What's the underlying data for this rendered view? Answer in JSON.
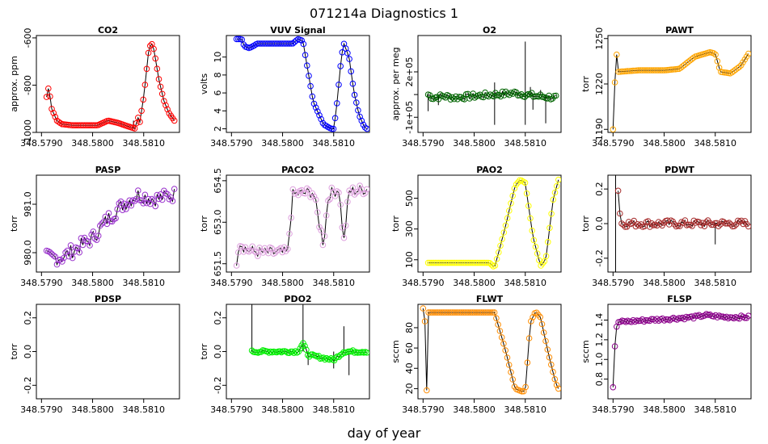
{
  "figure": {
    "title": "071214a   Diagnostics 1",
    "xlabel": "day of year"
  },
  "chart_data": [
    {
      "type": "scatter",
      "title": "CO2",
      "ylabel": "approx. ppm",
      "color": "#ff0000",
      "xlim": [
        348.5789,
        348.5817
      ],
      "ylim": [
        -1000,
        -590
      ],
      "yticks": [
        -1000,
        -800,
        -600
      ],
      "ytick_labels": [
        "-1000",
        "-800",
        "-600"
      ],
      "xticks": [
        348.579,
        348.58,
        348.581
      ],
      "xtick_labels": [
        "348.5790",
        "348.5800",
        "348.5810"
      ],
      "anchors": [
        [
          348.5791,
          -850
        ],
        [
          348.57912,
          -810
        ],
        [
          348.57915,
          -820
        ],
        [
          348.5792,
          -900
        ],
        [
          348.5793,
          -950
        ],
        [
          348.5794,
          -965
        ],
        [
          348.5796,
          -970
        ],
        [
          348.5801,
          -970
        ],
        [
          348.5802,
          -960
        ],
        [
          348.5803,
          -950
        ],
        [
          348.5805,
          -960
        ],
        [
          348.5807,
          -975
        ],
        [
          348.58085,
          -985
        ],
        [
          348.58088,
          -880
        ],
        [
          348.5809,
          -990
        ],
        [
          348.581,
          -850
        ],
        [
          348.5811,
          -650
        ],
        [
          348.58115,
          -620
        ],
        [
          348.5812,
          -650
        ],
        [
          348.5813,
          -780
        ],
        [
          348.5814,
          -870
        ],
        [
          348.5815,
          -920
        ],
        [
          348.5816,
          -950
        ]
      ],
      "spikes": [
        [
          348.5808,
          -985,
          -950
        ]
      ]
    },
    {
      "type": "scatter",
      "title": "VUV Signal",
      "ylabel": "volts",
      "color": "#0000ff",
      "xlim": [
        348.5789,
        348.5817
      ],
      "ylim": [
        1.6,
        12.4
      ],
      "yticks": [
        2,
        4,
        6,
        8,
        10
      ],
      "ytick_labels": [
        "2",
        "4",
        "6",
        "8",
        "10"
      ],
      "xticks": [
        348.579,
        348.58,
        348.581
      ],
      "xtick_labels": [
        "348.5790",
        "348.5800",
        "348.5810"
      ],
      "anchors": [
        [
          348.5791,
          12.0
        ],
        [
          348.5792,
          12.0
        ],
        [
          348.57925,
          11.2
        ],
        [
          348.57935,
          11.0
        ],
        [
          348.57945,
          11.3
        ],
        [
          348.5795,
          11.5
        ],
        [
          348.5802,
          11.5
        ],
        [
          348.5803,
          12.0
        ],
        [
          348.5804,
          11.8
        ],
        [
          348.58045,
          10.0
        ],
        [
          348.5806,
          5.0
        ],
        [
          348.5808,
          2.5
        ],
        [
          348.58095,
          2.0
        ],
        [
          348.581,
          2.0
        ],
        [
          348.58105,
          4.0
        ],
        [
          348.58115,
          10.0
        ],
        [
          348.5812,
          11.5
        ],
        [
          348.5813,
          10.0
        ],
        [
          348.5814,
          6.0
        ],
        [
          348.5815,
          3.5
        ],
        [
          348.5816,
          2.2
        ],
        [
          348.58165,
          2.0
        ]
      ],
      "spikes": []
    },
    {
      "type": "scatter",
      "title": "O2",
      "ylabel": "approx. per meg",
      "color": "#006400",
      "xlim": [
        348.5789,
        348.5817
      ],
      "ylim": [
        -200000.0,
        440000.0
      ],
      "yticks": [
        -100000.0,
        50000.0,
        200000.0
      ],
      "ytick_labels": [
        "-1e+05",
        "",
        "2e+05"
      ],
      "xticks": [
        348.579,
        348.58,
        348.581
      ],
      "xtick_labels": [
        "348.5790",
        "348.5800",
        "348.5810"
      ],
      "anchors": [
        [
          348.5791,
          50000.0
        ],
        [
          348.5792,
          30000.0
        ],
        [
          348.5794,
          40000.0
        ],
        [
          348.5796,
          30000.0
        ],
        [
          348.58,
          40000.0
        ],
        [
          348.5804,
          50000.0
        ],
        [
          348.5808,
          60000.0
        ],
        [
          348.5812,
          40000.0
        ],
        [
          348.5816,
          30000.0
        ]
      ],
      "noise": 18000,
      "spikes": [
        [
          348.5791,
          50000,
          -60000
        ],
        [
          348.5793,
          50000,
          -20000
        ],
        [
          348.5804,
          50000,
          130000
        ],
        [
          348.5804,
          50000,
          -150000
        ],
        [
          348.581,
          50000,
          400000
        ],
        [
          348.581,
          50000,
          -150000
        ],
        [
          348.5811,
          50000,
          100000
        ],
        [
          348.58115,
          50000,
          -50000
        ],
        [
          348.5813,
          50000,
          80000
        ],
        [
          348.5814,
          50000,
          -140000
        ]
      ]
    },
    {
      "type": "scatter",
      "title": "PAWT",
      "ylabel": "torr",
      "color": "#ffa500",
      "xlim": [
        348.5789,
        348.5817
      ],
      "ylim": [
        1188,
        1252
      ],
      "yticks": [
        1190,
        1220,
        1250
      ],
      "ytick_labels": [
        "1190",
        "1220",
        "1250"
      ],
      "xticks": [
        348.579,
        348.58,
        348.581
      ],
      "xtick_labels": [
        "348.5790",
        "348.5800",
        "348.5810"
      ],
      "anchors": [
        [
          348.579,
          1190
        ],
        [
          348.57903,
          1210
        ],
        [
          348.57905,
          1248
        ],
        [
          348.5791,
          1228
        ],
        [
          348.5795,
          1229
        ],
        [
          348.58,
          1229
        ],
        [
          348.5803,
          1230
        ],
        [
          348.5806,
          1238
        ],
        [
          348.5809,
          1241
        ],
        [
          348.581,
          1240
        ],
        [
          348.5811,
          1228
        ],
        [
          348.5813,
          1227
        ],
        [
          348.5815,
          1232
        ],
        [
          348.58165,
          1240
        ]
      ],
      "spikes": []
    },
    {
      "type": "scatter",
      "title": "PASP",
      "ylabel": "torr",
      "color": "#9932cc",
      "xlim": [
        348.5789,
        348.5817
      ],
      "ylim": [
        979.6,
        981.6
      ],
      "yticks": [
        980.0,
        981.0
      ],
      "ytick_labels": [
        "980.0",
        "981.0"
      ],
      "xticks": [
        348.579,
        348.58,
        348.581
      ],
      "xtick_labels": [
        "348.5790",
        "348.5800",
        "348.5810"
      ],
      "anchors": [
        [
          348.5791,
          979.9
        ],
        [
          348.5794,
          979.9
        ],
        [
          348.5797,
          980.1
        ],
        [
          348.58,
          980.3
        ],
        [
          348.5803,
          980.7
        ],
        [
          348.5806,
          981.0
        ],
        [
          348.5809,
          981.2
        ],
        [
          348.5812,
          981.1
        ],
        [
          348.5816,
          981.2
        ]
      ],
      "noise": 0.15,
      "spikes": []
    },
    {
      "type": "scatter",
      "title": "PACO2",
      "ylabel": "torr",
      "color": "#dda0dd",
      "xlim": [
        348.5789,
        348.5817
      ],
      "ylim": [
        651.2,
        654.7
      ],
      "yticks": [
        651.5,
        653.0,
        654.5
      ],
      "ytick_labels": [
        "651.5",
        "653.0",
        "654.5"
      ],
      "xticks": [
        348.579,
        348.58,
        348.581
      ],
      "xtick_labels": [
        "348.5790",
        "348.5800",
        "348.5810"
      ],
      "anchors": [
        [
          348.5791,
          651.6
        ],
        [
          348.57915,
          652.3
        ],
        [
          348.5793,
          652.0
        ],
        [
          348.5796,
          651.9
        ],
        [
          348.5801,
          651.9
        ],
        [
          348.5802,
          654.0
        ],
        [
          348.5806,
          654.1
        ],
        [
          348.5808,
          652.2
        ],
        [
          348.5809,
          654.0
        ],
        [
          348.5811,
          654.2
        ],
        [
          348.5812,
          652.3
        ],
        [
          348.5813,
          654.1
        ],
        [
          348.58165,
          654.2
        ]
      ],
      "noise": 0.2,
      "spikes": []
    },
    {
      "type": "scatter",
      "title": "PAO2",
      "ylabel": "torr",
      "color": "#ffff00",
      "xlim": [
        348.5789,
        348.5817
      ],
      "ylim": [
        20,
        650
      ],
      "yticks": [
        100,
        300,
        500
      ],
      "ytick_labels": [
        "100",
        "300",
        "500"
      ],
      "xticks": [
        348.579,
        348.58,
        348.581
      ],
      "xtick_labels": [
        "348.5790",
        "348.5800",
        "348.5810"
      ],
      "anchors": [
        [
          348.5791,
          80
        ],
        [
          348.5803,
          80
        ],
        [
          348.5804,
          50
        ],
        [
          348.5806,
          300
        ],
        [
          348.5808,
          580
        ],
        [
          348.5809,
          620
        ],
        [
          348.581,
          600
        ],
        [
          348.58115,
          250
        ],
        [
          348.5813,
          60
        ],
        [
          348.5814,
          100
        ],
        [
          348.58155,
          500
        ],
        [
          348.58165,
          620
        ]
      ],
      "spikes": []
    },
    {
      "type": "scatter",
      "title": "PDWT",
      "ylabel": "torr",
      "color": "#a52a2a",
      "xlim": [
        348.5789,
        348.5817
      ],
      "ylim": [
        -0.28,
        0.28
      ],
      "yticks": [
        -0.2,
        0.0,
        0.2
      ],
      "ytick_labels": [
        "-0.2",
        "0.0",
        "0.2"
      ],
      "xticks": [
        348.579,
        348.58,
        348.581
      ],
      "xtick_labels": [
        "348.5790",
        "348.5800",
        "348.5810"
      ],
      "anchors": [
        [
          348.5791,
          0.2
        ],
        [
          348.57915,
          0.0
        ],
        [
          348.58165,
          0.0
        ]
      ],
      "noise": 0.02,
      "spikes": [
        [
          348.57905,
          0,
          0.3
        ],
        [
          348.57905,
          0,
          -0.3
        ],
        [
          348.581,
          0,
          -0.12
        ]
      ]
    },
    {
      "type": "scatter",
      "title": "PDSP",
      "ylabel": "torr",
      "color": "#000000",
      "xlim": [
        348.5789,
        348.5817
      ],
      "ylim": [
        -0.28,
        0.28
      ],
      "yticks": [
        -0.2,
        0.0,
        0.2
      ],
      "ytick_labels": [
        "-0.2",
        "0.0",
        "0.2"
      ],
      "xticks": [
        348.579,
        348.58,
        348.581
      ],
      "xtick_labels": [
        "348.5790",
        "348.5800",
        "348.5810"
      ],
      "anchors": [],
      "spikes": []
    },
    {
      "type": "scatter",
      "title": "PDO2",
      "ylabel": "torr",
      "color": "#00ee00",
      "xlim": [
        348.5789,
        348.5817
      ],
      "ylim": [
        -0.28,
        0.28
      ],
      "yticks": [
        -0.2,
        0.0,
        0.2
      ],
      "ytick_labels": [
        "-0.2",
        "0.0",
        "0.2"
      ],
      "xticks": [
        348.579,
        348.58,
        348.581
      ],
      "xtick_labels": [
        "348.5790",
        "348.5800",
        "348.5810"
      ],
      "anchors": [
        [
          348.5794,
          0.0
        ],
        [
          348.5803,
          0.0
        ],
        [
          348.5804,
          0.05
        ],
        [
          348.5805,
          -0.02
        ],
        [
          348.581,
          -0.05
        ],
        [
          348.5812,
          0.0
        ],
        [
          348.58165,
          0.0
        ]
      ],
      "noise": 0.008,
      "spikes": [
        [
          348.5794,
          0,
          0.3
        ],
        [
          348.5804,
          0,
          0.3
        ],
        [
          348.5805,
          0,
          -0.08
        ],
        [
          348.581,
          0,
          -0.1
        ],
        [
          348.5812,
          0,
          0.15
        ],
        [
          348.5813,
          0,
          -0.14
        ]
      ]
    },
    {
      "type": "scatter",
      "title": "FLWT",
      "ylabel": "sccm",
      "color": "#ff8c00",
      "xlim": [
        348.5789,
        348.5817
      ],
      "ylim": [
        10,
        103
      ],
      "yticks": [
        20,
        40,
        60,
        80
      ],
      "ytick_labels": [
        "20",
        "40",
        "60",
        "80"
      ],
      "xticks": [
        348.579,
        348.58,
        348.581
      ],
      "xtick_labels": [
        "348.5790",
        "348.5800",
        "348.5810"
      ],
      "anchors": [
        [
          348.579,
          99
        ],
        [
          348.57903,
          97
        ],
        [
          348.57905,
          60
        ],
        [
          348.57907,
          14
        ],
        [
          348.5791,
          95
        ],
        [
          348.5804,
          95
        ],
        [
          348.5806,
          60
        ],
        [
          348.5808,
          20
        ],
        [
          348.58095,
          17
        ],
        [
          348.581,
          18
        ],
        [
          348.5811,
          85
        ],
        [
          348.5812,
          96
        ],
        [
          348.5813,
          90
        ],
        [
          348.58145,
          55
        ],
        [
          348.5816,
          25
        ],
        [
          348.58165,
          20
        ]
      ],
      "spikes": []
    },
    {
      "type": "scatter",
      "title": "FLSP",
      "ylabel": "sccm",
      "color": "#8b008b",
      "xlim": [
        348.5789,
        348.5817
      ],
      "ylim": [
        0.6,
        1.56
      ],
      "yticks": [
        0.8,
        1.0,
        1.2,
        1.4
      ],
      "ytick_labels": [
        "0.8",
        "1.0",
        "1.2",
        "1.4"
      ],
      "xticks": [
        348.579,
        348.58,
        348.581
      ],
      "xtick_labels": [
        "348.5790",
        "348.5800",
        "348.5810"
      ],
      "anchors": [
        [
          348.579,
          0.72
        ],
        [
          348.57903,
          1.1
        ],
        [
          348.57906,
          1.3
        ],
        [
          348.5791,
          1.38
        ],
        [
          348.58,
          1.41
        ],
        [
          348.5806,
          1.43
        ],
        [
          348.5808,
          1.45
        ],
        [
          348.5812,
          1.43
        ],
        [
          348.58165,
          1.43
        ]
      ],
      "noise": 0.015,
      "spikes": []
    }
  ]
}
